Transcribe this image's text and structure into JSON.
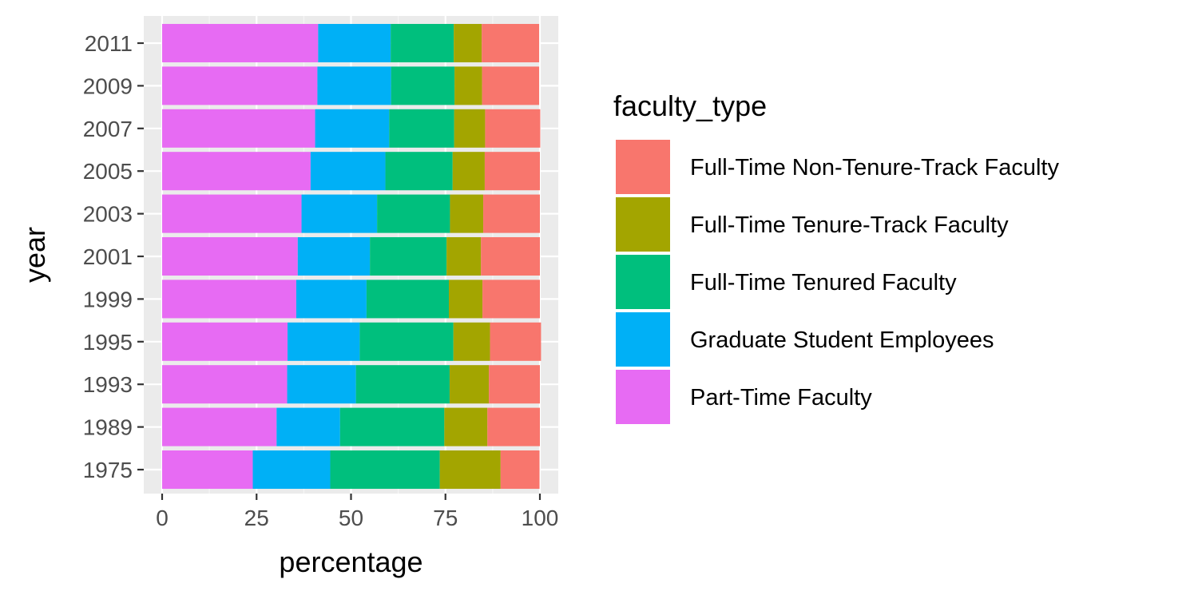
{
  "chart_data": {
    "type": "bar",
    "orientation": "horizontal",
    "stacked": true,
    "title": "",
    "xlabel": "percentage",
    "ylabel": "year",
    "xlim": [
      0,
      100
    ],
    "x_ticks": [
      "0",
      "25",
      "50",
      "75",
      "100"
    ],
    "categories": [
      "1975",
      "1989",
      "1993",
      "1995",
      "1999",
      "2001",
      "2003",
      "2005",
      "2007",
      "2009",
      "2011"
    ],
    "grid": true,
    "legend_position": "right",
    "legend_title": "faculty_type",
    "stack_order": [
      "Part-Time Faculty",
      "Graduate Student Employees",
      "Full-Time Tenured Faculty",
      "Full-Time Tenure-Track Faculty",
      "Full-Time Non-Tenure-Track Faculty"
    ],
    "series": [
      {
        "name": "Full-Time Non-Tenure-Track Faculty",
        "color": "#F8766D",
        "values": [
          10.3,
          13.9,
          13.5,
          13.5,
          15.2,
          15.6,
          15.0,
          14.6,
          14.6,
          15.1,
          15.2
        ]
      },
      {
        "name": "Full-Time Tenure-Track Faculty",
        "color": "#A3A500",
        "values": [
          16.1,
          11.4,
          10.4,
          9.7,
          8.9,
          9.1,
          8.8,
          8.5,
          8.2,
          7.3,
          7.4
        ]
      },
      {
        "name": "Full-Time Tenured Faculty",
        "color": "#00BF7D",
        "values": [
          29.0,
          27.6,
          24.8,
          24.8,
          21.8,
          20.3,
          19.3,
          17.8,
          17.2,
          16.8,
          16.7
        ]
      },
      {
        "name": "Graduate Student Employees",
        "color": "#00B0F6",
        "values": [
          20.5,
          16.8,
          18.2,
          19.1,
          18.6,
          19.1,
          20.0,
          19.8,
          19.6,
          19.5,
          19.2
        ]
      },
      {
        "name": "Part-Time Faculty",
        "color": "#E76BF3",
        "values": [
          24.0,
          30.3,
          33.1,
          33.2,
          35.5,
          35.9,
          36.9,
          39.3,
          40.5,
          41.1,
          41.3
        ]
      }
    ],
    "colors": {
      "panel_background": "#EBEBEB",
      "grid_major": "#FFFFFF",
      "tick_text": "#4D4D4D",
      "tick_mark": "#333333"
    }
  }
}
